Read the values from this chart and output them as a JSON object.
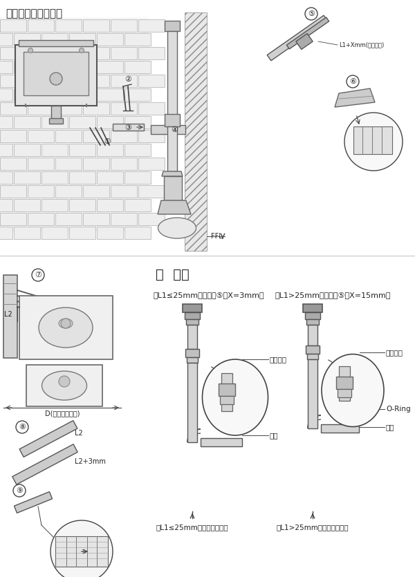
{
  "title": "弯管与直管的安装：",
  "bg_color": "#ffffff",
  "line_color": "#444444",
  "text_color": "#222222",
  "hint_title": "提  示：",
  "hint1": "当L1≤25mm时，步骤⑤中X=3mm：",
  "hint2": "当L1>25mm时，步骤⑤中X=15mm：",
  "caption1": "当L1≤25mm时，完成示意图",
  "caption2": "当L1>25mm时，完成示意图",
  "label_guodu1": "过渡接头",
  "label_guodu2": "过渡接头",
  "label_zhiguan1": "直管",
  "label_zhiguan2": "直管",
  "label_oring": "O-Ring",
  "label_d": "D(实际到墙距离)",
  "label_ffl": "FFL",
  "label_l2": "L2",
  "label_l2_b": "L2",
  "label_l2_3mm": "L2+3mm",
  "label_step5": "L1+Xmm(详见索示)",
  "step5_num": "⑤",
  "step6_num": "⑥",
  "step7_num": "⑦",
  "step8_num": "⑧",
  "step9_num": "⑨",
  "step1_num": "①",
  "step2_num": "②",
  "step3_num": "③",
  "step4_num": "④"
}
